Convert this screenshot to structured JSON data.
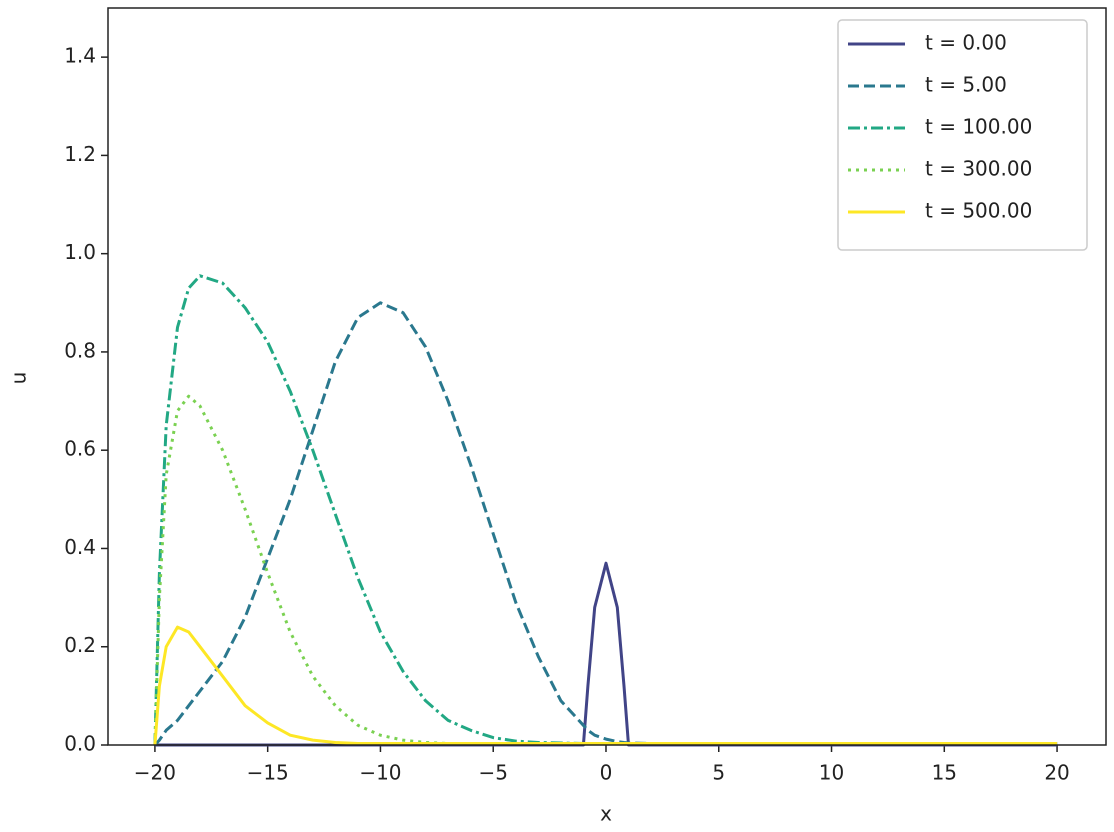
{
  "chart_data": {
    "type": "line",
    "xlabel": "x",
    "ylabel": "u",
    "x": [
      -20,
      -19.8,
      -19.5,
      -19,
      -18.5,
      -18,
      -17,
      -16,
      -15,
      -14,
      -13,
      -12,
      -11,
      -10,
      -9,
      -8,
      -7,
      -6,
      -5,
      -4,
      -3,
      -2,
      -1,
      -0.8,
      -0.5,
      0,
      0.5,
      0.8,
      1,
      2,
      3,
      4,
      5,
      10,
      15,
      20
    ],
    "series": [
      {
        "name": "t = 0.00",
        "color": "#414487",
        "linestyle": "solid",
        "values": [
          0,
          0,
          0,
          0,
          0,
          0,
          0,
          0,
          0,
          0,
          0,
          0,
          0,
          0,
          0,
          0,
          0,
          0,
          0,
          0,
          0,
          0,
          0,
          0.12,
          0.28,
          0.37,
          0.28,
          0.12,
          0,
          0,
          0,
          0,
          0,
          0,
          0,
          0
        ]
      },
      {
        "name": "t = 5.00",
        "color": "#2a788e",
        "linestyle": "dashed",
        "values": [
          0,
          0.01,
          0.03,
          0.05,
          0.08,
          0.11,
          0.17,
          0.26,
          0.38,
          0.5,
          0.64,
          0.78,
          0.87,
          0.9,
          0.88,
          0.81,
          0.7,
          0.57,
          0.43,
          0.29,
          0.18,
          0.09,
          0.04,
          0.03,
          0.02,
          0.012,
          0.007,
          0.005,
          0.004,
          0.003,
          0.003,
          0.003,
          0.003,
          0.003,
          0.003,
          0.003
        ]
      },
      {
        "name": "t = 100.00",
        "color": "#22a884",
        "linestyle": "dashdot",
        "values": [
          0,
          0.35,
          0.65,
          0.85,
          0.93,
          0.955,
          0.94,
          0.89,
          0.82,
          0.72,
          0.6,
          0.47,
          0.34,
          0.23,
          0.15,
          0.09,
          0.05,
          0.03,
          0.015,
          0.008,
          0.005,
          0.004,
          0.003,
          0.003,
          0.003,
          0.003,
          0.003,
          0.003,
          0.003,
          0.003,
          0.003,
          0.003,
          0.003,
          0.003,
          0.003,
          0.003
        ]
      },
      {
        "name": "t = 300.00",
        "color": "#7ad151",
        "linestyle": "dotted",
        "values": [
          0,
          0.3,
          0.55,
          0.68,
          0.71,
          0.69,
          0.6,
          0.48,
          0.35,
          0.23,
          0.14,
          0.08,
          0.04,
          0.02,
          0.01,
          0.005,
          0.003,
          0.003,
          0.003,
          0.003,
          0.003,
          0.003,
          0.003,
          0.003,
          0.003,
          0.003,
          0.003,
          0.003,
          0.003,
          0.003,
          0.003,
          0.003,
          0.003,
          0.003,
          0.003,
          0.003
        ]
      },
      {
        "name": "t = 500.00",
        "color": "#fde725",
        "linestyle": "solid",
        "values": [
          0,
          0.12,
          0.2,
          0.24,
          0.23,
          0.2,
          0.14,
          0.08,
          0.045,
          0.02,
          0.01,
          0.005,
          0.003,
          0.003,
          0.003,
          0.003,
          0.003,
          0.003,
          0.003,
          0.003,
          0.003,
          0.003,
          0.003,
          0.003,
          0.003,
          0.003,
          0.003,
          0.003,
          0.003,
          0.003,
          0.003,
          0.003,
          0.003,
          0.003,
          0.003,
          0.003
        ]
      }
    ],
    "xlim": [
      -22.08,
      22.17
    ],
    "ylim": [
      0,
      1.5
    ],
    "xticks": [
      {
        "value": -20,
        "label": "−20"
      },
      {
        "value": -15,
        "label": "−15"
      },
      {
        "value": -10,
        "label": "−10"
      },
      {
        "value": -5,
        "label": "−5"
      },
      0,
      5,
      10,
      15,
      20
    ],
    "yticks": [
      {
        "value": 0,
        "label": "0.0"
      },
      {
        "value": 0.2,
        "label": "0.2"
      },
      {
        "value": 0.4,
        "label": "0.4"
      },
      {
        "value": 0.6,
        "label": "0.6"
      },
      {
        "value": 0.8,
        "label": "0.8"
      },
      {
        "value": 1.0,
        "label": "1.0"
      },
      {
        "value": 1.2,
        "label": "1.2"
      },
      {
        "value": 1.4,
        "label": "1.4"
      }
    ],
    "grid": false,
    "legend": "upper right"
  }
}
